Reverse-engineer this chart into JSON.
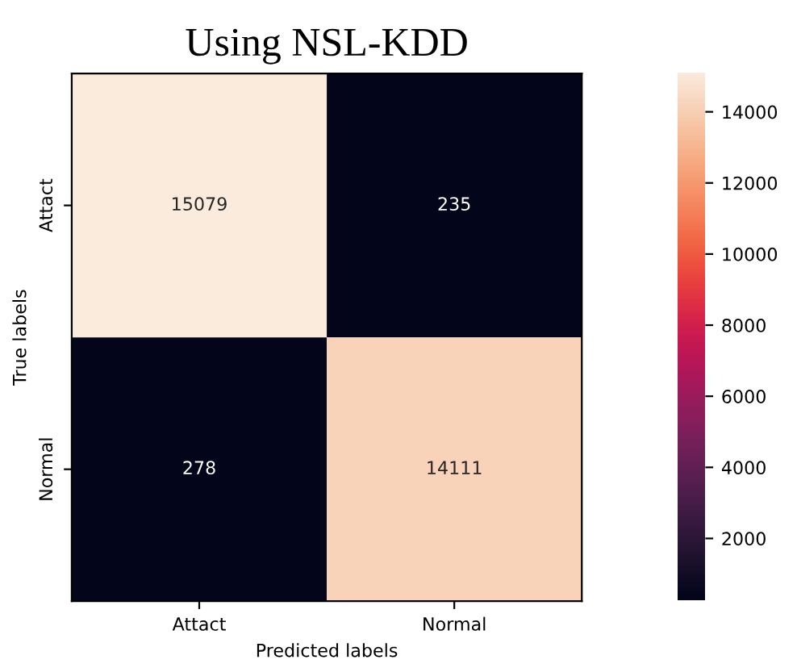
{
  "chart_data": {
    "type": "heatmap",
    "title": "Using NSL-KDD",
    "xlabel": "Predicted labels",
    "ylabel": "True labels",
    "categories": [
      "Attact",
      "Normal"
    ],
    "y_categories": [
      "Attact",
      "Normal"
    ],
    "cells": [
      [
        15079,
        235
      ],
      [
        278,
        14111
      ]
    ],
    "data_labels": true,
    "clim": [
      235,
      15079
    ],
    "cticks": [
      2000,
      4000,
      6000,
      8000,
      10000,
      12000,
      14000
    ]
  }
}
